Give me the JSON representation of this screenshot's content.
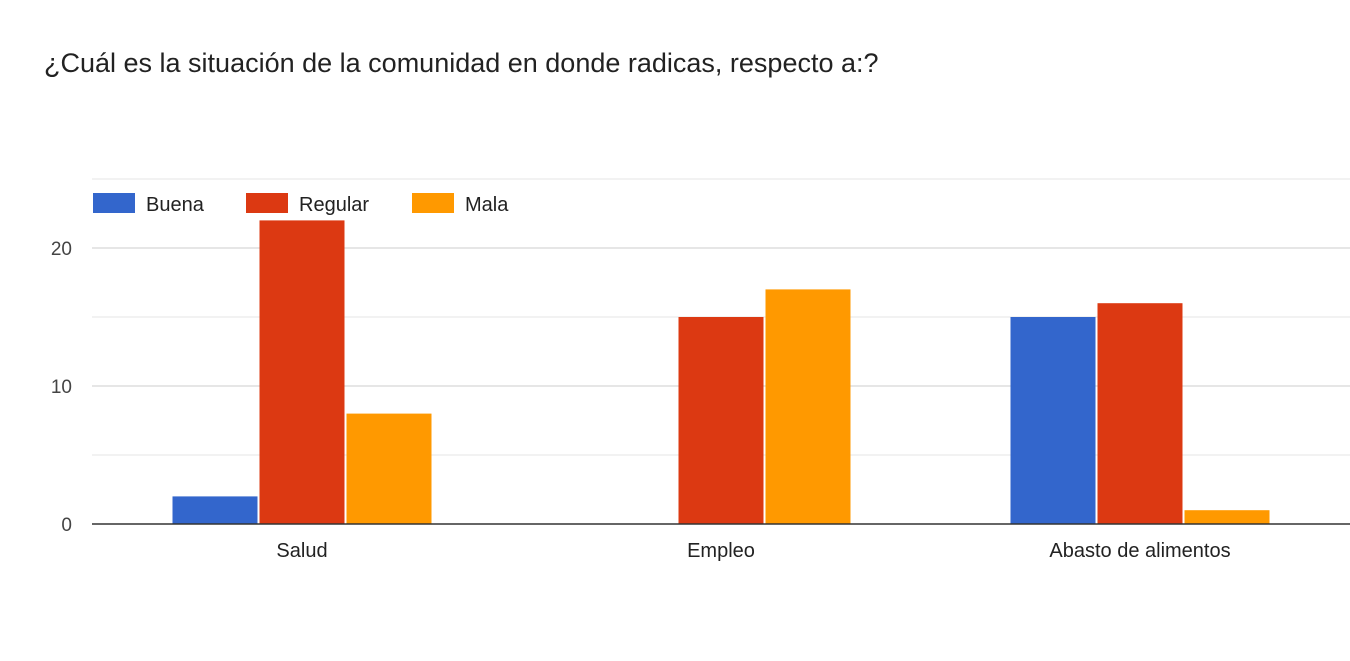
{
  "chart_data": {
    "type": "bar",
    "title": "¿Cuál es la situación de la comunidad en donde radicas, respecto a:?",
    "categories": [
      "Salud",
      "Empleo",
      "Abasto de alimentos"
    ],
    "series": [
      {
        "name": "Buena",
        "color": "#3366cc",
        "values": [
          2,
          0,
          15
        ]
      },
      {
        "name": "Regular",
        "color": "#dc3912",
        "values": [
          22,
          15,
          16
        ]
      },
      {
        "name": "Mala",
        "color": "#ff9900",
        "values": [
          8,
          17,
          1
        ]
      }
    ],
    "y_ticks": [
      "0",
      "10",
      "20"
    ],
    "ylim": [
      0,
      25
    ],
    "gridlines": [
      0,
      5,
      10,
      15,
      20,
      25
    ],
    "legend_position": "top-left",
    "xlabel": "",
    "ylabel": ""
  }
}
